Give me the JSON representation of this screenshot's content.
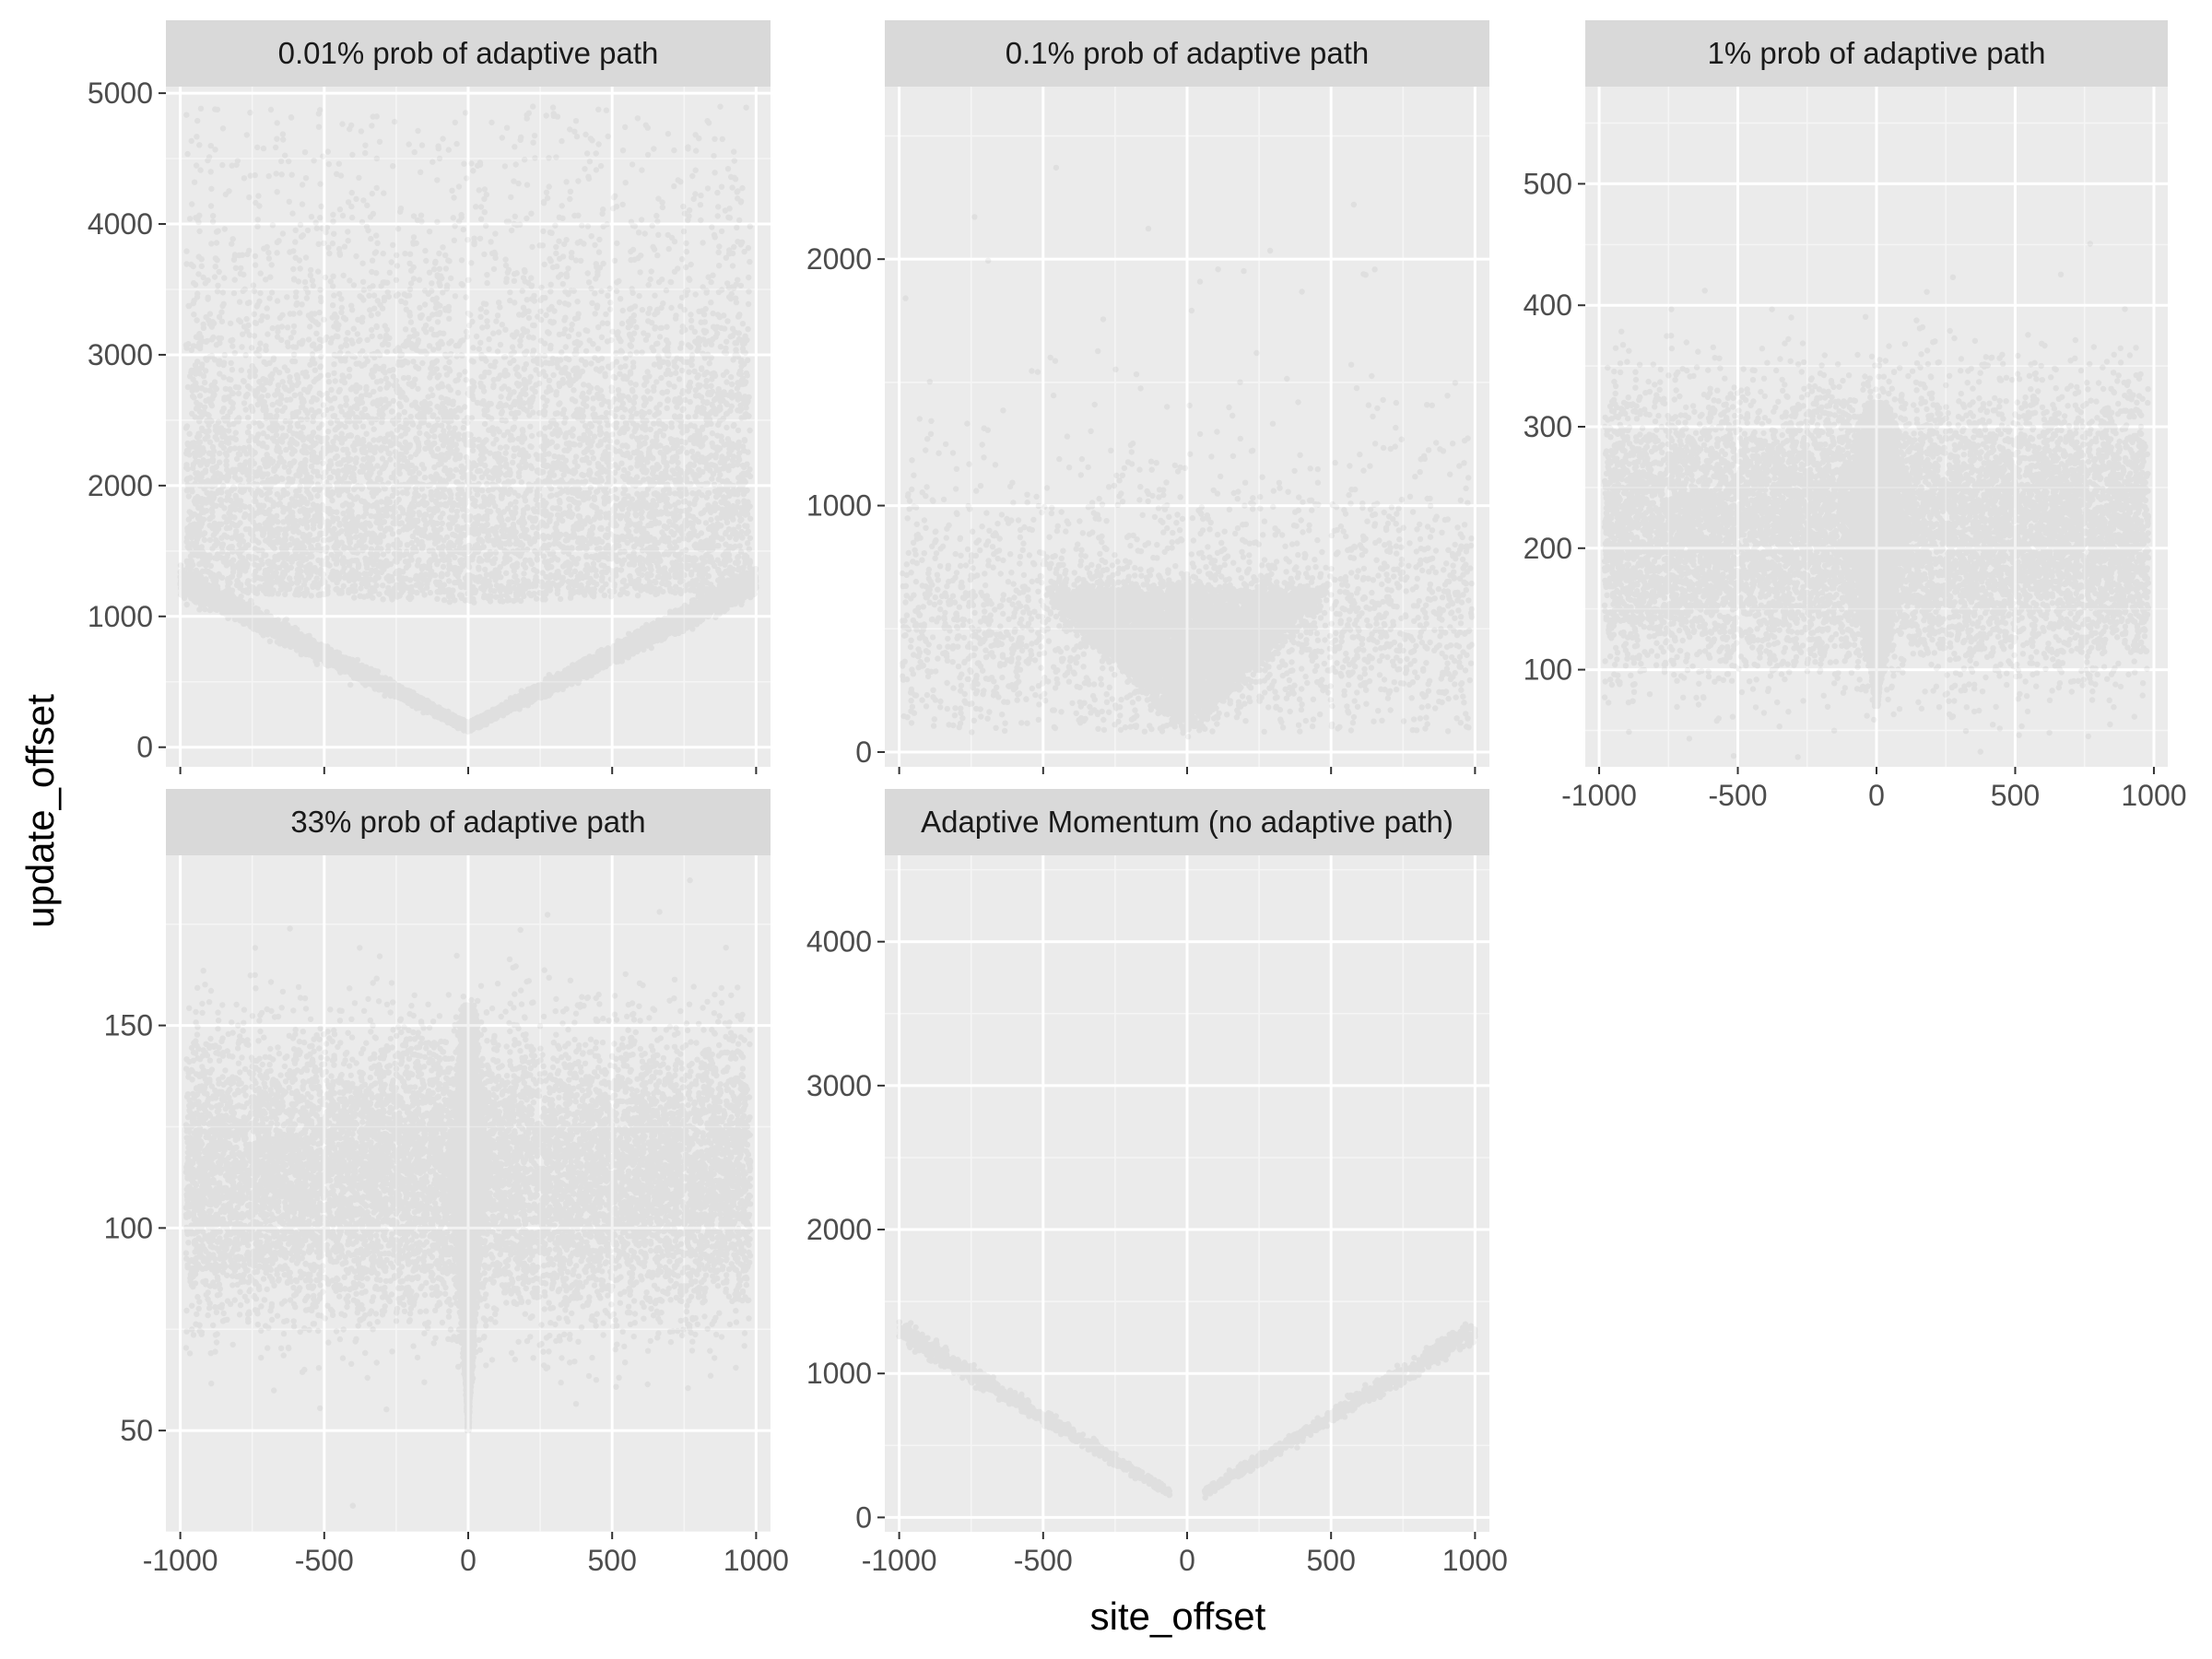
{
  "colors": {
    "panel_bg": "#ebebeb",
    "strip_bg": "#d9d9d9",
    "grid_major": "#ffffff",
    "grid_minor": "#f5f5f5",
    "points": "#1e1e1e",
    "tick": "#333333"
  },
  "chart_data": {
    "type": "scatter",
    "layout": "facet-wrap, 3 columns x 2 rows, free y scales",
    "x_title": "site_offset",
    "y_title": "update_offset",
    "x_range": [
      -1050,
      1050
    ],
    "x_ticks": [
      -1000,
      -500,
      0,
      500,
      1000
    ],
    "x_tick_labels": [
      "-1000",
      "-500",
      "0",
      "500",
      "1000"
    ],
    "panels": [
      {
        "title": "0.01% prob of adaptive path",
        "y_range": [
          -150,
          5050
        ],
        "y_ticks": [
          0,
          1000,
          2000,
          3000,
          4000,
          5000
        ],
        "y_tick_labels": [
          "0",
          "1000",
          "2000",
          "3000",
          "4000",
          "5000"
        ],
        "show_x_axis": false,
        "pattern": {
          "kind": "v-diffuse",
          "v_min": 150,
          "v_slope": 1.12,
          "v_width": 30,
          "v_count": 9000,
          "cloud_count": 7000,
          "cloud_center": 1100,
          "cloud_spread": 1100,
          "cloud_max": 4900,
          "cloud_xwidth": 980
        }
      },
      {
        "title": "0.1% prob of adaptive path",
        "y_range": [
          -60,
          2700
        ],
        "y_ticks": [
          0,
          1000,
          2000
        ],
        "y_tick_labels": [
          "0",
          "1000",
          "2000"
        ],
        "show_x_axis": false,
        "pattern": {
          "kind": "fan",
          "core_count": 12000,
          "core_top": 650,
          "core_min": 100,
          "core_halfwidth": 480,
          "cloud_count": 9000,
          "cloud_center": 520,
          "cloud_spread": 280,
          "cloud_max": 2400,
          "cloud_xwidth": 990
        }
      },
      {
        "title": "1% prob of adaptive path",
        "y_range": [
          20,
          580
        ],
        "y_ticks": [
          100,
          200,
          300,
          400,
          500
        ],
        "y_tick_labels": [
          "100",
          "200",
          "300",
          "400",
          "500"
        ],
        "show_x_axis": true,
        "pattern": {
          "kind": "spike",
          "core_count": 9000,
          "core_min": 70,
          "core_max": 320,
          "core_center": 220,
          "core_halfwidth": 110,
          "cloud_count": 12000,
          "cloud_center": 215,
          "cloud_spread": 55,
          "cloud_xwidth": 980
        }
      },
      {
        "title": "33% prob of adaptive path",
        "y_range": [
          25,
          192
        ],
        "y_ticks": [
          50,
          100,
          150
        ],
        "y_tick_labels": [
          "50",
          "100",
          "150"
        ],
        "show_x_axis": true,
        "pattern": {
          "kind": "spike",
          "core_count": 9000,
          "core_min": 50,
          "core_max": 155,
          "core_center": 115,
          "core_halfwidth": 55,
          "cloud_count": 12000,
          "cloud_center": 113,
          "cloud_spread": 17,
          "cloud_xwidth": 980
        }
      },
      {
        "title": "Adaptive Momentum (no adaptive path)",
        "y_range": [
          -100,
          4600
        ],
        "y_ticks": [
          0,
          1000,
          2000,
          3000,
          4000
        ],
        "y_tick_labels": [
          "0",
          "1000",
          "2000",
          "3000",
          "4000"
        ],
        "show_x_axis": true,
        "pattern": {
          "kind": "v-thin",
          "v_min": 100,
          "v_slope": 1.2,
          "v_width": 25,
          "v_count": 1800,
          "gap": 60
        }
      }
    ]
  }
}
